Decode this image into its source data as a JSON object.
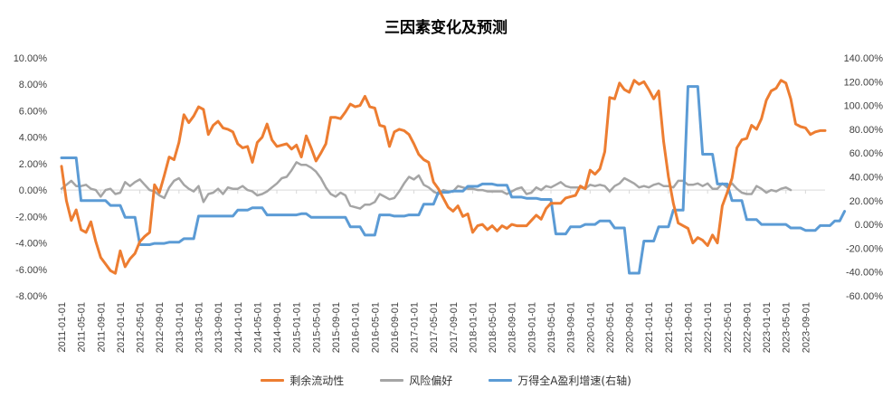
{
  "chart_data": {
    "type": "line",
    "title": "三因素变化及预测",
    "xlabel": "",
    "ylabel": "",
    "left_axis": {
      "ylim": [
        -8,
        10
      ],
      "step": 2,
      "ticks": [
        "-8.00%",
        "-6.00%",
        "-4.00%",
        "-2.00%",
        "0.00%",
        "2.00%",
        "4.00%",
        "6.00%",
        "8.00%",
        "10.00%"
      ]
    },
    "right_axis": {
      "ylim": [
        -60,
        140
      ],
      "step": 20,
      "ticks": [
        "-60.00%",
        "-40.00%",
        "-20.00%",
        "0.00%",
        "20.00%",
        "40.00%",
        "60.00%",
        "80.00%",
        "100.00%",
        "120.00%",
        "140.00%"
      ]
    },
    "x_tick_labels": [
      "2011-01-01",
      "2011-05-01",
      "2011-09-01",
      "2012-01-01",
      "2012-05-01",
      "2012-09-01",
      "2013-01-01",
      "2013-05-01",
      "2013-09-01",
      "2014-01-01",
      "2014-05-01",
      "2014-09-01",
      "2015-01-01",
      "2015-05-01",
      "2015-09-01",
      "2016-01-01",
      "2016-05-01",
      "2016-09-01",
      "2017-01-01",
      "2017-05-01",
      "2017-09-01",
      "2018-01-01",
      "2018-05-01",
      "2018-09-01",
      "2019-01-01",
      "2019-05-01",
      "2019-09-01",
      "2020-01-01",
      "2020-05-01",
      "2020-09-01",
      "2021-01-01",
      "2021-05-01",
      "2021-09-01",
      "2022-01-01",
      "2022-05-01",
      "2022-09-01",
      "2023-01-01",
      "2023-05-01",
      "2023-09-01"
    ],
    "x_start": "2011-01",
    "legend_position": "bottom",
    "grid": false,
    "series": [
      {
        "name": "剩余流动性",
        "axis": "left",
        "color": "#ED7D31",
        "values": [
          1.8,
          -0.8,
          -2.3,
          -1.5,
          -3.0,
          -3.2,
          -2.4,
          -3.9,
          -5.1,
          -5.6,
          -6.1,
          -6.3,
          -4.6,
          -5.8,
          -5.2,
          -4.8,
          -3.9,
          -3.5,
          -3.2,
          0.4,
          -0.2,
          1.1,
          2.5,
          2.3,
          3.6,
          5.7,
          5.1,
          5.6,
          6.3,
          6.1,
          4.2,
          4.9,
          5.2,
          4.7,
          4.6,
          4.4,
          3.5,
          3.2,
          3.3,
          2.1,
          3.6,
          4.0,
          5.0,
          3.8,
          3.3,
          3.4,
          3.5,
          3.1,
          3.4,
          2.5,
          4.1,
          3.2,
          2.2,
          2.8,
          3.5,
          5.5,
          5.5,
          5.4,
          5.9,
          6.5,
          6.3,
          6.4,
          7.1,
          6.3,
          6.2,
          4.9,
          4.8,
          3.3,
          4.4,
          4.6,
          4.5,
          4.2,
          3.5,
          2.7,
          2.3,
          2.1,
          0.6,
          0.1,
          -0.6,
          -1.3,
          -1.6,
          -1.2,
          -2.0,
          -1.8,
          -3.2,
          -2.7,
          -2.6,
          -3.0,
          -2.7,
          -3.1,
          -2.7,
          -2.9,
          -2.6,
          -2.7,
          -2.7,
          -2.7,
          -2.3,
          -1.9,
          -2.2,
          -1.4,
          -1.0,
          -1.0,
          -1.0,
          -0.6,
          -0.5,
          -0.4,
          0.3,
          0.1,
          1.5,
          1.2,
          1.6,
          2.9,
          7.0,
          6.9,
          8.1,
          7.6,
          7.4,
          8.3,
          8.0,
          8.2,
          7.6,
          6.9,
          7.5,
          3.7,
          1.0,
          -1.0,
          -2.5,
          -2.7,
          -2.9,
          -4.0,
          -3.6,
          -3.8,
          -4.2,
          -3.4,
          -4.0,
          -1.2,
          -0.2,
          0.9,
          3.2,
          3.8,
          3.9,
          4.9,
          4.6,
          5.4,
          6.8,
          7.5,
          7.7,
          8.3,
          8.1,
          6.9,
          5.0,
          4.8,
          4.7,
          4.2,
          4.4,
          4.5,
          4.5
        ]
      },
      {
        "name": "风险偏好",
        "axis": "left",
        "color": "#A5A5A5",
        "values": [
          0.1,
          0.4,
          0.7,
          0.3,
          0.3,
          0.4,
          0.1,
          0.0,
          -0.5,
          0.0,
          0.1,
          -0.3,
          -0.2,
          0.6,
          0.3,
          0.6,
          0.8,
          0.4,
          0.0,
          -0.1,
          -0.4,
          -0.6,
          0.2,
          0.7,
          0.9,
          0.4,
          0.1,
          -0.1,
          0.3,
          -0.9,
          -0.3,
          -0.2,
          0.1,
          -0.3,
          0.2,
          0.1,
          0.1,
          0.3,
          0.0,
          -0.1,
          -0.4,
          -0.3,
          -0.1,
          0.2,
          0.5,
          0.9,
          1.0,
          1.5,
          2.1,
          1.9,
          1.9,
          1.7,
          1.4,
          0.9,
          0.2,
          -0.3,
          -0.5,
          -0.2,
          -0.4,
          -1.2,
          -1.3,
          -1.4,
          -1.1,
          -1.1,
          -0.9,
          -0.3,
          -0.5,
          -0.7,
          -0.6,
          -0.1,
          0.5,
          1.0,
          0.8,
          1.1,
          0.4,
          0.2,
          -0.1,
          -0.3,
          0.0,
          -0.1,
          -0.1,
          0.3,
          0.2,
          0.1,
          0.1,
          0.0,
          0.0,
          -0.1,
          -0.1,
          -0.1,
          -0.1,
          -0.3,
          -0.1,
          0.1,
          0.2,
          -0.3,
          -0.2,
          0.2,
          0.0,
          0.3,
          0.2,
          0.4,
          0.6,
          0.3,
          0.2,
          0.2,
          0.2,
          0.1,
          0.4,
          0.3,
          0.4,
          0.3,
          -0.1,
          0.3,
          0.5,
          0.9,
          0.7,
          0.5,
          0.2,
          0.3,
          0.2,
          0.4,
          0.5,
          0.3,
          0.3,
          0.2,
          0.7,
          0.7,
          0.4,
          0.4,
          0.5,
          0.3,
          0.5,
          0.1,
          0.1,
          0.5,
          0.2,
          0.5,
          0.1,
          -0.2,
          -0.3,
          -0.3,
          0.3,
          0.1,
          -0.2,
          0.0,
          -0.1,
          0.1,
          0.2,
          0.0
        ]
      },
      {
        "name": "万得全A盈利增速(右轴)",
        "axis": "right",
        "color": "#5B9BD5",
        "values": [
          56,
          56,
          56,
          56,
          20,
          20,
          20,
          20,
          20,
          20,
          16,
          16,
          16,
          6,
          6,
          6,
          -17,
          -17,
          -17,
          -16,
          -16,
          -16,
          -15,
          -15,
          -15,
          -12,
          -12,
          -12,
          7,
          7,
          7,
          7,
          7,
          7,
          7,
          7,
          12,
          12,
          12,
          14,
          14,
          14,
          8,
          8,
          8,
          8,
          8,
          8,
          8,
          9,
          9,
          6,
          6,
          6,
          6,
          6,
          6,
          6,
          6,
          -2,
          -2,
          -2,
          -9,
          -9,
          -9,
          8,
          8,
          8,
          7,
          7,
          7,
          8,
          8,
          8,
          17,
          17,
          17,
          27,
          27,
          27,
          28,
          28,
          28,
          32,
          32,
          32,
          34,
          34,
          34,
          33,
          33,
          33,
          23,
          23,
          23,
          22,
          22,
          22,
          21,
          21,
          21,
          -8,
          -8,
          -8,
          -2,
          -2,
          -2,
          0,
          0,
          0,
          3,
          3,
          3,
          -3,
          -3,
          -3,
          -41,
          -41,
          -41,
          -14,
          -14,
          -14,
          -2,
          -2,
          -2,
          12,
          12,
          12,
          116,
          116,
          116,
          59,
          59,
          59,
          34,
          34,
          34,
          20,
          20,
          20,
          4,
          4,
          4,
          0,
          0,
          0,
          0,
          0,
          0,
          -3,
          -3,
          -3,
          -5,
          -5,
          -5,
          -1,
          -1,
          -1,
          3,
          3,
          11
        ]
      }
    ]
  }
}
